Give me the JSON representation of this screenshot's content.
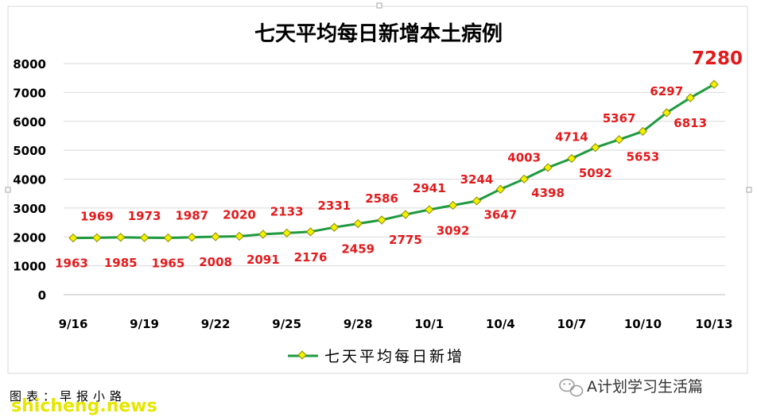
{
  "colors": {
    "line": "#1f9a3f",
    "marker_fill": "#f2f200",
    "marker_stroke": "#8a8a00",
    "label": "#e31a1c",
    "grid": "#d9d9d9"
  },
  "chart_data": {
    "type": "line",
    "title": "七天平均每日新增本土病例",
    "xlabel": "",
    "ylabel": "",
    "ylim": [
      0,
      8000
    ],
    "yticks": [
      "0",
      "1000",
      "2000",
      "3000",
      "4000",
      "5000",
      "6000",
      "7000",
      "8000"
    ],
    "categories": [
      "9/16",
      "9/17",
      "9/18",
      "9/19",
      "9/20",
      "9/21",
      "9/22",
      "9/23",
      "9/24",
      "9/25",
      "9/26",
      "9/27",
      "9/28",
      "9/29",
      "9/30",
      "10/1",
      "10/2",
      "10/3",
      "10/4",
      "10/5",
      "10/6",
      "10/7",
      "10/8",
      "10/9",
      "10/10",
      "10/11",
      "10/12",
      "10/13"
    ],
    "xtick_labels": [
      "9/16",
      "9/19",
      "9/22",
      "9/25",
      "9/28",
      "10/1",
      "10/4",
      "10/7",
      "10/10",
      "10/13"
    ],
    "series": [
      {
        "name": "七天平均每日新增",
        "values": [
          1963,
          1969,
          1985,
          1973,
          1965,
          1987,
          2008,
          2020,
          2091,
          2133,
          2176,
          2331,
          2459,
          2586,
          2775,
          2941,
          3092,
          3244,
          3647,
          4003,
          4398,
          4714,
          5092,
          5367,
          5653,
          6297,
          6813,
          7280
        ],
        "label_positions": [
          "below",
          "above",
          "below",
          "above",
          "below",
          "above",
          "below",
          "above",
          "below",
          "above",
          "below",
          "above",
          "below",
          "above",
          "below",
          "above",
          "below",
          "above",
          "below",
          "above",
          "below",
          "above",
          "below",
          "above",
          "below",
          "above",
          "below",
          "above-large"
        ]
      }
    ],
    "grid": true,
    "legend": "bottom"
  },
  "footer": {
    "source": "图表：早报小路",
    "watermark": "shicheng.news",
    "brand": "A计划学习生活篇",
    "brand_icon": "wechat-icon"
  }
}
